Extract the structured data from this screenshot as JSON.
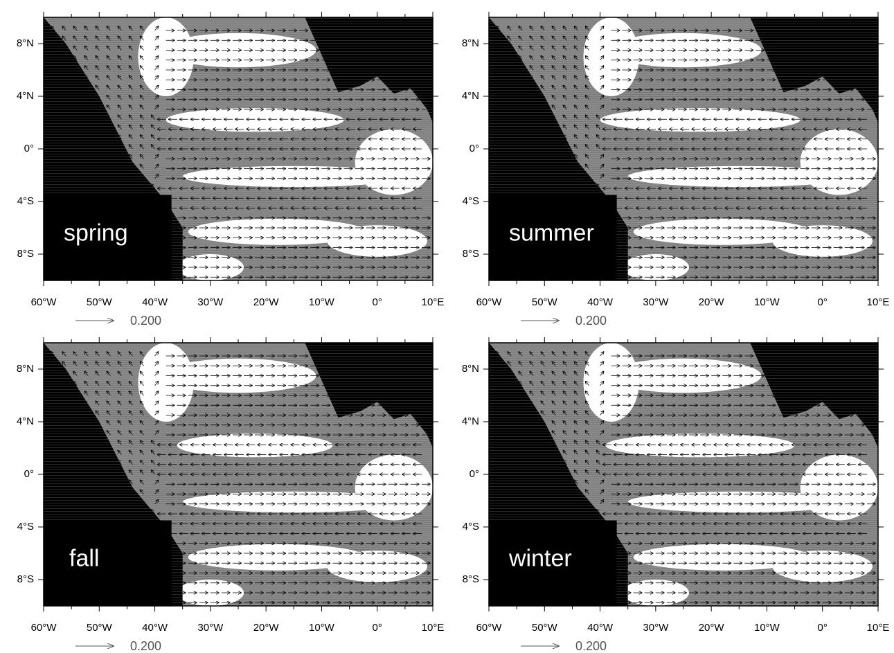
{
  "panels": [
    {
      "label": "spring"
    },
    {
      "label": "summer"
    },
    {
      "label": "fall"
    },
    {
      "label": "winter"
    }
  ],
  "lon_range": [
    -60,
    10
  ],
  "lat_range": [
    -10,
    10
  ],
  "lon_ticks": [
    {
      "value": -60,
      "label": "60°W"
    },
    {
      "value": -50,
      "label": "50°W"
    },
    {
      "value": -40,
      "label": "40°W"
    },
    {
      "value": -30,
      "label": "30°W"
    },
    {
      "value": -20,
      "label": "20°W"
    },
    {
      "value": -10,
      "label": "10°W"
    },
    {
      "value": 0,
      "label": "0°"
    },
    {
      "value": 10,
      "label": "10°E"
    }
  ],
  "lat_ticks": [
    {
      "value": 8,
      "label": "8°N"
    },
    {
      "value": 4,
      "label": "4°N"
    },
    {
      "value": 0,
      "label": "0°"
    },
    {
      "value": -4,
      "label": "4°S"
    },
    {
      "value": -8,
      "label": "8°S"
    }
  ],
  "reference_vector": {
    "value": 0.2,
    "label": "0.200"
  }
}
